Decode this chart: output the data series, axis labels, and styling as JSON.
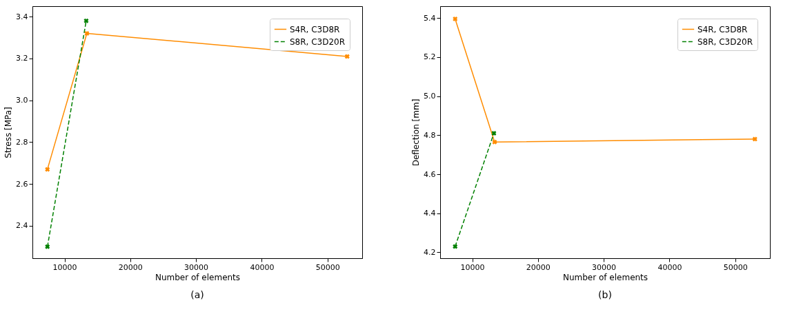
{
  "chart_data": [
    {
      "type": "line",
      "xlabel": "Number of elements",
      "ylabel": "Stress [MPa]",
      "annotations": [
        "(a)"
      ],
      "legend": "top right",
      "grid": false,
      "marker": "cross",
      "xlim": [
        5120,
        55280
      ],
      "xticks": [
        10000,
        20000,
        30000,
        40000,
        50000
      ],
      "ylim": [
        2.245,
        3.45
      ],
      "yticks": [
        2.4,
        2.6,
        2.8,
        {
          "value": 3,
          "label": "3.0"
        },
        3.2,
        3.4
      ],
      "series": [
        {
          "name": "S4R, C3D8R",
          "color": "#ff8c00",
          "line_style": "solid",
          "x": [
            7400,
            13400,
            53000
          ],
          "values": [
            2.67,
            3.32,
            3.21
          ]
        },
        {
          "name": "S8R, C3D20R",
          "color": "#008000",
          "line_style": "dashed",
          "x": [
            7400,
            13300
          ],
          "values": [
            2.3,
            3.38
          ]
        }
      ]
    },
    {
      "type": "line",
      "xlabel": "Number of elements",
      "ylabel": "Deflection [mm]",
      "annotations": [
        "(b)"
      ],
      "legend": "top right",
      "grid": false,
      "marker": "cross",
      "xlim": [
        5120,
        55280
      ],
      "xticks": [
        10000,
        20000,
        30000,
        40000,
        50000
      ],
      "ylim": [
        4.17,
        5.46
      ],
      "yticks": [
        4.2,
        4.4,
        4.6,
        4.8,
        {
          "value": 5,
          "label": "5.0"
        },
        5.2,
        5.4
      ],
      "series": [
        {
          "name": "S4R, C3D8R",
          "color": "#ff8c00",
          "line_style": "solid",
          "x": [
            7400,
            13400,
            53000
          ],
          "values": [
            5.395,
            4.765,
            4.78
          ]
        },
        {
          "name": "S8R, C3D20R",
          "color": "#008000",
          "line_style": "dashed",
          "x": [
            7400,
            13300
          ],
          "values": [
            4.23,
            4.81
          ]
        }
      ]
    }
  ]
}
